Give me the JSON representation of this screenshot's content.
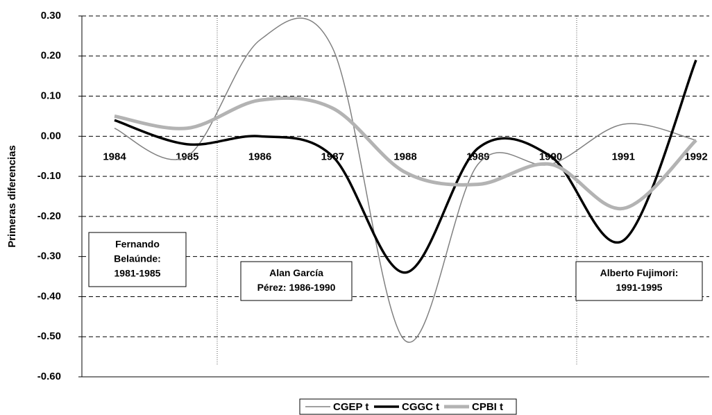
{
  "chart_data": {
    "type": "line",
    "y_label": "Primeras diferencias",
    "categories": [
      "1984",
      "1985",
      "1986",
      "1987",
      "1988",
      "1989",
      "1990",
      "1991",
      "1992"
    ],
    "series": [
      {
        "name": "CGEP t",
        "color": "#808080",
        "values": [
          0.02,
          -0.05,
          0.24,
          0.22,
          -0.51,
          -0.07,
          -0.07,
          0.03,
          -0.01
        ]
      },
      {
        "name": "CGGC t",
        "color": "#000000",
        "values": [
          0.04,
          -0.02,
          0.0,
          -0.05,
          -0.34,
          -0.03,
          -0.05,
          -0.26,
          0.19
        ]
      },
      {
        "name": "CPBI t",
        "color": "#b3b3b3",
        "values": [
          0.05,
          0.02,
          0.09,
          0.07,
          -0.09,
          -0.12,
          -0.07,
          -0.18,
          -0.01
        ]
      }
    ],
    "ylim": [
      -0.6,
      0.3
    ],
    "yticks": [
      {
        "value": 0.3,
        "label": "0.30"
      },
      {
        "value": 0.2,
        "label": "0.20"
      },
      {
        "value": 0.1,
        "label": "0.10"
      },
      {
        "value": 0,
        "label": "0.00"
      },
      {
        "value": -0.1,
        "label": "-0.10"
      },
      {
        "value": -0.2,
        "label": "-0.20"
      },
      {
        "value": -0.3,
        "label": "-0.30"
      },
      {
        "value": -0.4,
        "label": "-0.40"
      },
      {
        "value": -0.5,
        "label": "-0.50"
      },
      {
        "value": -0.6,
        "label": "-0.60"
      }
    ],
    "grid": true,
    "legend": "bottom",
    "annotations": [
      {
        "lines": [
          "Fernando",
          "Belaúnde:",
          "1981-1985"
        ]
      },
      {
        "lines": [
          "Alan García",
          "Pérez: 1986-1990"
        ]
      },
      {
        "lines": [
          "Alberto Fujimori:",
          "1991-1995"
        ]
      }
    ]
  }
}
